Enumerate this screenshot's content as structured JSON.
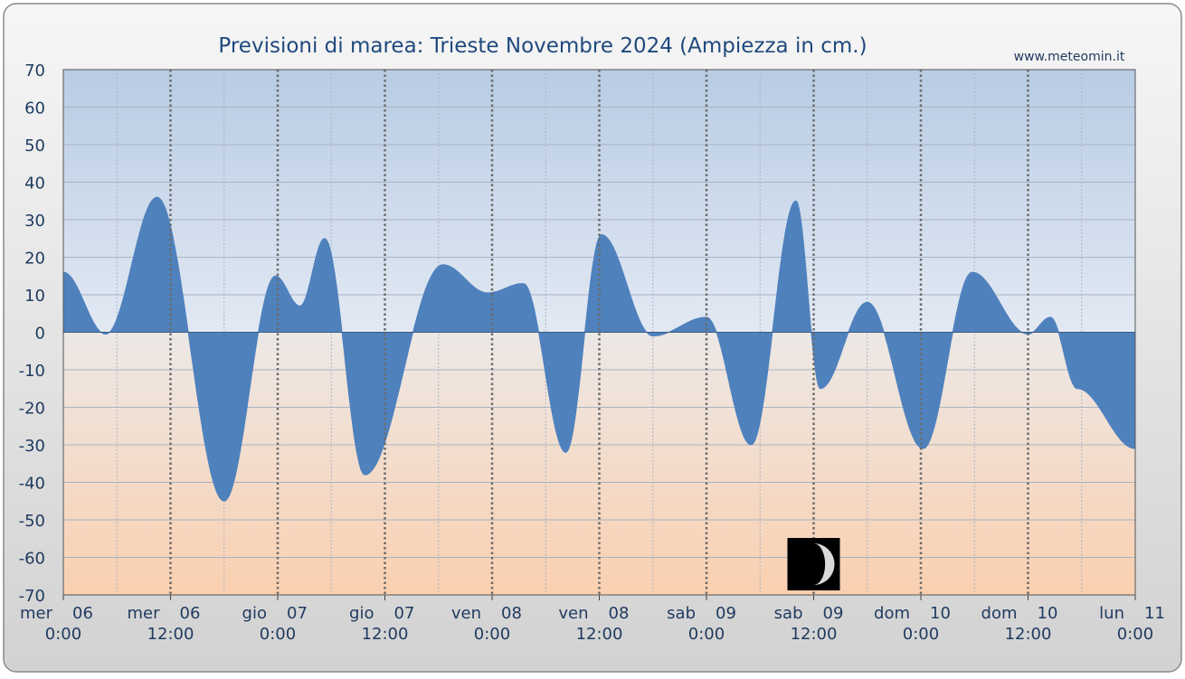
{
  "source_label": "www.meteomin.it",
  "colors": {
    "fill": "#4f81bd",
    "sky_top": "#b8cce4",
    "sky_bottom": "#e2e9f3",
    "sand_top": "#ece8e6",
    "sand_bottom": "#fad0b0",
    "title": "#1f497d",
    "frame": "#dcdcdc"
  },
  "moon_icon": "waning-crescent-moon-icon",
  "chart_data": {
    "type": "area",
    "title": "Previsioni di marea: Trieste Novembre 2024 (Ampiezza in cm.)",
    "xlabel": "",
    "ylabel": "",
    "ylim": [
      -70,
      70
    ],
    "xlim": [
      "2024-11-06 00:00",
      "2024-11-11 00:00"
    ],
    "grid": true,
    "yticks": [
      70,
      60,
      50,
      40,
      30,
      20,
      10,
      0,
      -10,
      -20,
      -30,
      -40,
      -50,
      -60,
      -70
    ],
    "x_tick_labels": [
      {
        "x": "2024-11-06 00:00",
        "day": "mer",
        "date": "06",
        "time": "0:00"
      },
      {
        "x": "2024-11-06 12:00",
        "day": "mer",
        "date": "06",
        "time": "12:00"
      },
      {
        "x": "2024-11-07 00:00",
        "day": "gio",
        "date": "07",
        "time": "0:00"
      },
      {
        "x": "2024-11-07 12:00",
        "day": "gio",
        "date": "07",
        "time": "12:00"
      },
      {
        "x": "2024-11-08 00:00",
        "day": "ven",
        "date": "08",
        "time": "0:00"
      },
      {
        "x": "2024-11-08 12:00",
        "day": "ven",
        "date": "08",
        "time": "12:00"
      },
      {
        "x": "2024-11-09 00:00",
        "day": "sab",
        "date": "09",
        "time": "0:00"
      },
      {
        "x": "2024-11-09 12:00",
        "day": "sab",
        "date": "09",
        "time": "12:00"
      },
      {
        "x": "2024-11-10 00:00",
        "day": "dom",
        "date": "10",
        "time": "0:00"
      },
      {
        "x": "2024-11-10 12:00",
        "day": "dom",
        "date": "10",
        "time": "12:00"
      },
      {
        "x": "2024-11-11 00:00",
        "day": "lun",
        "date": "11",
        "time": "0:00"
      }
    ],
    "moon_phase_at": "2024-11-09 12:00",
    "series": [
      {
        "x": [
          "2024-11-06 00:00",
          "2024-11-06 04:45",
          "2024-11-06 10:30",
          "2024-11-06 18:00",
          "2024-11-06 23:45",
          "2024-11-07 02:30",
          "2024-11-07 05:15",
          "2024-11-07 09:45",
          "2024-11-07 18:30",
          "2024-11-07 23:30",
          "2024-11-08 03:30",
          "2024-11-08 08:15",
          "2024-11-08 12:15",
          "2024-11-08 18:00",
          "2024-11-09 00:00",
          "2024-11-09 05:00",
          "2024-11-09 10:00",
          "2024-11-09 12:45",
          "2024-11-09 18:00",
          "2024-11-10 00:15",
          "2024-11-10 05:45",
          "2024-11-10 12:00",
          "2024-11-10 14:30",
          "2024-11-10 17:30",
          "2024-11-11 00:00"
        ],
        "values": [
          16,
          -0.5,
          36,
          -45,
          15,
          7,
          25,
          -38,
          18,
          10.5,
          13,
          -32,
          26,
          -1,
          4,
          -30,
          35,
          -15,
          8,
          -31,
          16,
          -0.5,
          4,
          -15,
          -31
        ]
      }
    ]
  }
}
